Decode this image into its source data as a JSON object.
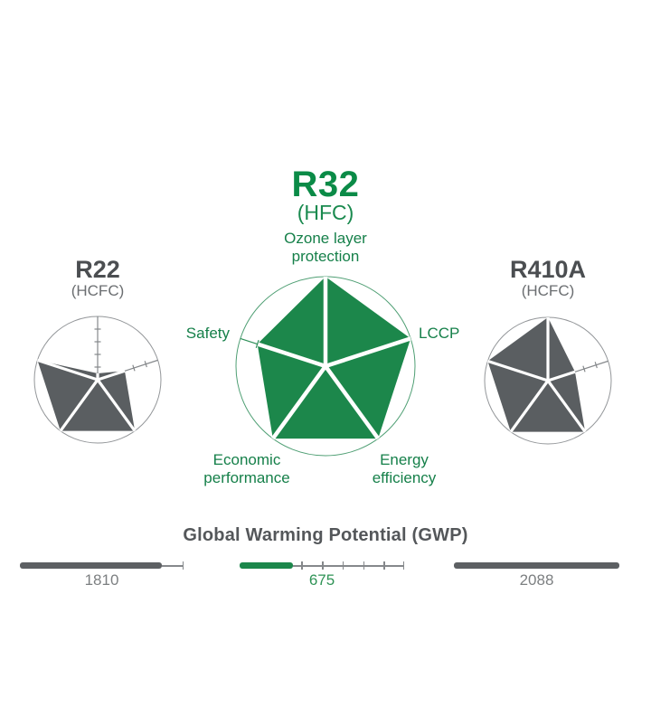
{
  "main_chart": {
    "title": "R32",
    "subtitle": "(HFC)",
    "labels": {
      "top_line1": "Ozone layer",
      "top_line2": "protection",
      "right": "LCCP",
      "bottom_right_line1": "Energy",
      "bottom_right_line2": "efficiency",
      "bottom_left_line1": "Economic",
      "bottom_left_line2": "performance",
      "left": "Safety"
    }
  },
  "left_chart": {
    "title": "R22",
    "subtitle": "(HCFC)"
  },
  "right_chart": {
    "title": "R410A",
    "subtitle": "(HCFC)"
  },
  "gwp": {
    "title": "Global Warming Potential (GWP)",
    "items": [
      {
        "name": "R22",
        "value": "1810"
      },
      {
        "name": "R32",
        "value": "675"
      },
      {
        "name": "R410A",
        "value": "2088"
      }
    ]
  },
  "colors": {
    "green_fill": "#1c874b",
    "green_circle": "#4f9f74",
    "green_axis": "#2d8f58",
    "green_bar": "#1c874b",
    "gray_fill": "#5a5e61",
    "gray_circle": "#939699",
    "gray_axis": "#85888b",
    "gray_bar": "#5d6063",
    "ruler": "#85888b",
    "white": "#ffffff"
  },
  "chart_data": [
    {
      "type": "radar",
      "name": "R32 (HFC)",
      "axes": [
        "Ozone layer protection",
        "LCCP",
        "Energy efficiency",
        "Economic performance",
        "Safety"
      ],
      "values": [
        1.0,
        1.0,
        1.0,
        1.0,
        0.8
      ],
      "range": [
        0,
        1
      ],
      "style": "green"
    },
    {
      "type": "radar",
      "name": "R22 (HCFC)",
      "axes": [
        "Ozone layer protection",
        "LCCP",
        "Energy efficiency",
        "Economic performance",
        "Safety"
      ],
      "values": [
        0.1,
        0.45,
        1.0,
        1.0,
        1.0
      ],
      "range": [
        0,
        1
      ],
      "style": "gray"
    },
    {
      "type": "radar",
      "name": "R410A (HCFC)",
      "axes": [
        "Ozone layer protection",
        "LCCP",
        "Energy efficiency",
        "Economic performance",
        "Safety"
      ],
      "values": [
        1.0,
        0.45,
        1.0,
        1.0,
        1.0
      ],
      "range": [
        0,
        1
      ],
      "style": "gray"
    },
    {
      "type": "bar",
      "title": "Global Warming Potential (GWP)",
      "categories": [
        "R22",
        "R32",
        "R410A"
      ],
      "values": [
        1810,
        675,
        2088
      ],
      "max": 2088,
      "highlight_index": 1,
      "orientation": "horizontal"
    }
  ]
}
